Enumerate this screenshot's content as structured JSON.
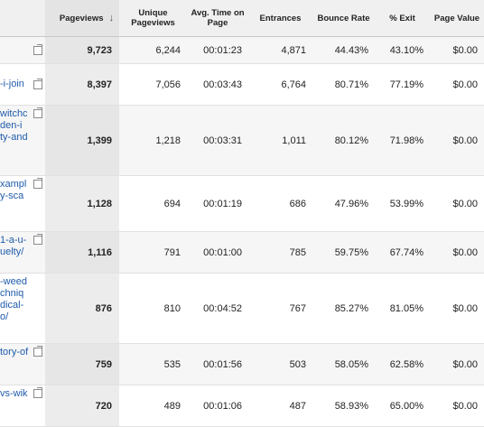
{
  "columns": [
    {
      "key": "page",
      "label": ""
    },
    {
      "key": "pageviews",
      "label": "Pageviews",
      "sort_icon": "sort-down-arrow-icon"
    },
    {
      "key": "unique",
      "label": "Unique Pageviews"
    },
    {
      "key": "avg_time",
      "label": "Avg. Time on Page"
    },
    {
      "key": "entrances",
      "label": "Entrances"
    },
    {
      "key": "bounce",
      "label": "Bounce Rate"
    },
    {
      "key": "exit",
      "label": "% Exit"
    },
    {
      "key": "value",
      "label": "Page Value"
    }
  ],
  "sort_arrow": "↓",
  "rows": [
    {
      "page": "",
      "pageviews": "9,723",
      "unique": "6,244",
      "avg_time": "00:01:23",
      "entrances": "4,871",
      "bounce": "44.43%",
      "exit": "43.10%",
      "value": "$0.00"
    },
    {
      "page": "-i-join",
      "pageviews": "8,397",
      "unique": "7,056",
      "avg_time": "00:03:43",
      "entrances": "6,764",
      "bounce": "80.71%",
      "exit": "77.19%",
      "value": "$0.00"
    },
    {
      "page_lines": [
        "witchc",
        "den-i",
        "ty-and"
      ],
      "pageviews": "1,399",
      "unique": "1,218",
      "avg_time": "00:03:31",
      "entrances": "1,011",
      "bounce": "80.12%",
      "exit": "71.98%",
      "value": "$0.00"
    },
    {
      "page_lines": [
        "xampl",
        "y-sca"
      ],
      "pageviews": "1,128",
      "unique": "694",
      "avg_time": "00:01:19",
      "entrances": "686",
      "bounce": "47.96%",
      "exit": "53.99%",
      "value": "$0.00"
    },
    {
      "page_lines": [
        "1-a-u-",
        "uelty/"
      ],
      "pageviews": "1,116",
      "unique": "791",
      "avg_time": "00:01:00",
      "entrances": "785",
      "bounce": "59.75%",
      "exit": "67.74%",
      "value": "$0.00"
    },
    {
      "page_lines": [
        "-weed",
        "chniq",
        "dical-",
        "o/"
      ],
      "pageviews": "876",
      "unique": "810",
      "avg_time": "00:04:52",
      "entrances": "767",
      "bounce": "85.27%",
      "exit": "81.05%",
      "value": "$0.00"
    },
    {
      "page": "tory-of",
      "pageviews": "759",
      "unique": "535",
      "avg_time": "00:01:56",
      "entrances": "503",
      "bounce": "58.05%",
      "exit": "62.58%",
      "value": "$0.00"
    },
    {
      "page": "vs-wik",
      "pageviews": "720",
      "unique": "489",
      "avg_time": "00:01:06",
      "entrances": "487",
      "bounce": "58.93%",
      "exit": "65.00%",
      "value": "$0.00"
    }
  ]
}
